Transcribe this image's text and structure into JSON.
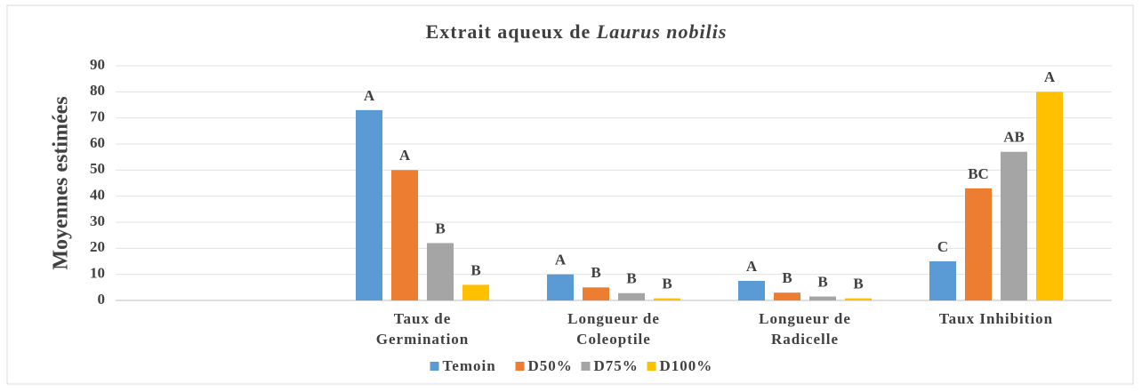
{
  "chart_data": {
    "type": "bar",
    "title": [
      "Extrait aqueux de",
      "Laurus nobilis"
    ],
    "y_label": "Moyennes estimées",
    "categories": [
      null,
      [
        "Taux de",
        "Germination"
      ],
      [
        "Longueur de",
        "Coleoptile"
      ],
      [
        "Longueur de",
        "Radicelle"
      ],
      [
        "Taux Inhibition"
      ]
    ],
    "series": [
      {
        "name": "Temoin",
        "color": "#5b9bd5",
        "values": [
          null,
          73,
          10,
          7.5,
          15
        ],
        "letters": [
          null,
          "A",
          "A",
          "A",
          "C"
        ]
      },
      {
        "name": "D50%",
        "color": "#ed7d31",
        "values": [
          null,
          50,
          5,
          3,
          43
        ],
        "letters": [
          null,
          "A",
          "B",
          "B",
          "BC"
        ]
      },
      {
        "name": "D75%",
        "color": "#a5a5a5",
        "values": [
          null,
          22,
          2.8,
          1.5,
          57
        ],
        "letters": [
          null,
          "B",
          "B",
          "B",
          "AB"
        ]
      },
      {
        "name": "D100%",
        "color": "#ffc000",
        "values": [
          null,
          6,
          0.8,
          0.8,
          80
        ],
        "letters": [
          null,
          "B",
          "B",
          "B",
          "A"
        ]
      }
    ],
    "ylim": [
      0,
      90
    ],
    "yticks": [
      0,
      10,
      20,
      30,
      40,
      50,
      60,
      70,
      80,
      90
    ],
    "grid": true,
    "legend": "bottom"
  }
}
